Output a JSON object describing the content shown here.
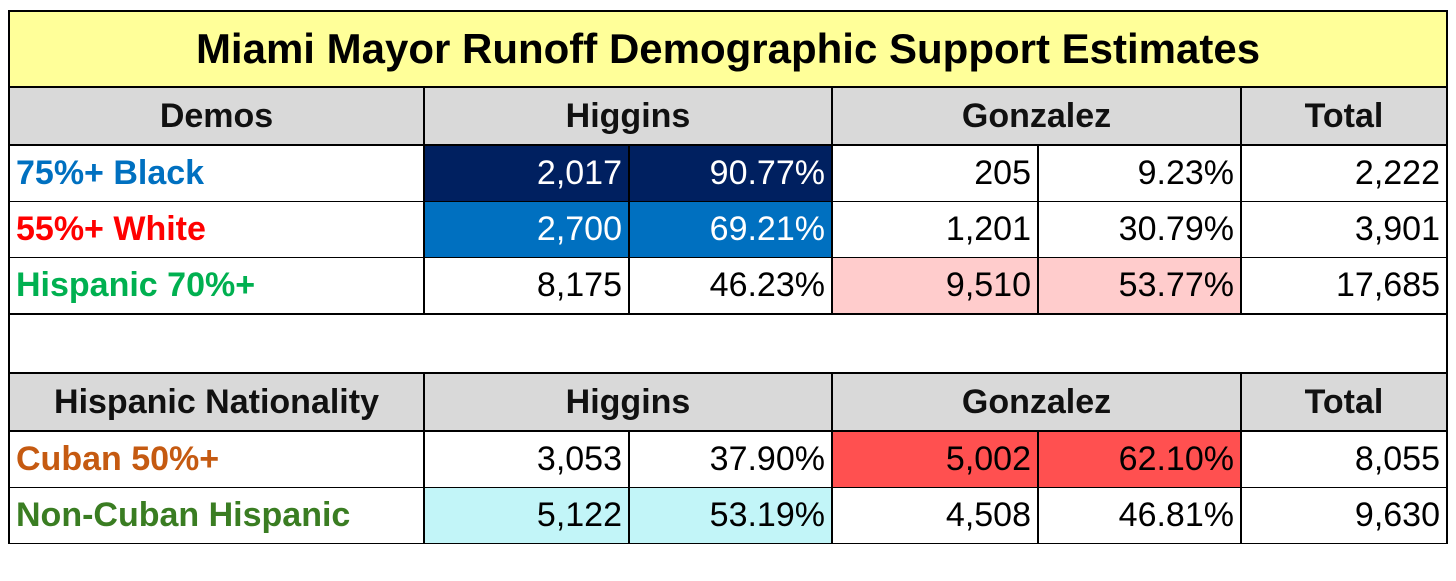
{
  "title": "Miami Mayor Runoff Demographic Support Estimates",
  "sections": [
    {
      "header": [
        "Demos",
        "Higgins",
        "Gonzalez",
        "Total"
      ],
      "rows": [
        {
          "label": "75%+ Black",
          "cells": [
            "2,017",
            "90.77%",
            "205",
            "9.23%",
            "2,222"
          ]
        },
        {
          "label": "55%+ White",
          "cells": [
            "2,700",
            "69.21%",
            "1,201",
            "30.79%",
            "3,901"
          ]
        },
        {
          "label": "Hispanic 70%+",
          "cells": [
            "8,175",
            "46.23%",
            "9,510",
            "53.77%",
            "17,685"
          ]
        }
      ]
    },
    {
      "header": [
        "Hispanic Nationality",
        "Higgins",
        "Gonzalez",
        "Total"
      ],
      "rows": [
        {
          "label": "Cuban 50%+",
          "cells": [
            "3,053",
            "37.90%",
            "5,002",
            "62.10%",
            "8,055"
          ]
        },
        {
          "label": "Non-Cuban Hispanic",
          "cells": [
            "5,122",
            "53.19%",
            "4,508",
            "46.81%",
            "9,630"
          ]
        }
      ]
    }
  ]
}
